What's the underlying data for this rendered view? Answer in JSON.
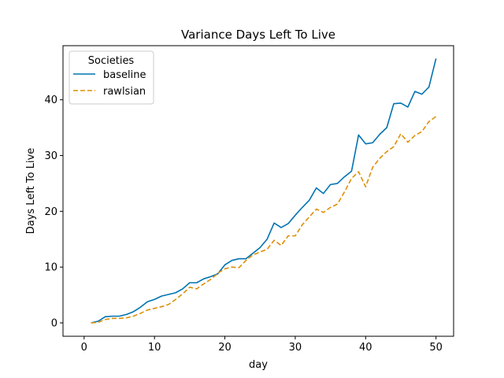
{
  "chart_data": {
    "type": "line",
    "title": "Variance Days Left To Live",
    "xlabel": "day",
    "ylabel": "Days Left To Live",
    "xlim": [
      -3,
      52.5
    ],
    "ylim": [
      -2.4,
      49.7
    ],
    "xticks": [
      0,
      10,
      20,
      30,
      40,
      50
    ],
    "yticks": [
      0,
      10,
      20,
      30,
      40
    ],
    "grid": false,
    "legend": {
      "title": "Societies",
      "placement": "top-left"
    },
    "x": [
      1,
      2,
      3,
      4,
      5,
      6,
      7,
      8,
      9,
      10,
      11,
      12,
      13,
      14,
      15,
      16,
      17,
      18,
      19,
      20,
      21,
      22,
      23,
      24,
      25,
      26,
      27,
      28,
      29,
      30,
      31,
      32,
      33,
      34,
      35,
      36,
      37,
      38,
      39,
      40,
      41,
      42,
      43,
      44,
      45,
      46,
      47,
      48,
      49,
      50
    ],
    "series": [
      {
        "name": "baseline",
        "color": "#0173b2",
        "dash": "solid",
        "values": [
          0.0,
          0.3,
          1.1,
          1.2,
          1.2,
          1.5,
          2.0,
          2.8,
          3.8,
          4.2,
          4.8,
          5.1,
          5.4,
          6.1,
          7.2,
          7.2,
          7.9,
          8.3,
          8.8,
          10.4,
          11.2,
          11.5,
          11.5,
          12.5,
          13.5,
          15.0,
          17.9,
          17.1,
          17.8,
          19.3,
          20.7,
          22.0,
          24.2,
          23.2,
          24.8,
          25.0,
          26.2,
          27.2,
          33.7,
          32.1,
          32.3,
          33.8,
          35.0,
          39.3,
          39.4,
          38.7,
          41.5,
          41.0,
          42.3,
          47.4
        ]
      },
      {
        "name": "rawlsian",
        "color": "#de8f05",
        "dash": "dashed",
        "values": [
          0.0,
          0.1,
          0.6,
          0.8,
          0.8,
          0.9,
          1.2,
          1.7,
          2.3,
          2.6,
          2.9,
          3.3,
          4.2,
          5.2,
          6.4,
          6.1,
          7.0,
          7.8,
          8.9,
          9.7,
          10.0,
          9.9,
          11.2,
          12.2,
          12.7,
          13.2,
          14.8,
          13.9,
          15.6,
          15.6,
          17.6,
          19.0,
          20.4,
          19.8,
          20.7,
          21.3,
          23.5,
          25.9,
          27.1,
          24.4,
          27.9,
          29.5,
          30.7,
          31.6,
          33.9,
          32.4,
          33.6,
          34.3,
          36.1,
          37.0
        ]
      }
    ]
  }
}
